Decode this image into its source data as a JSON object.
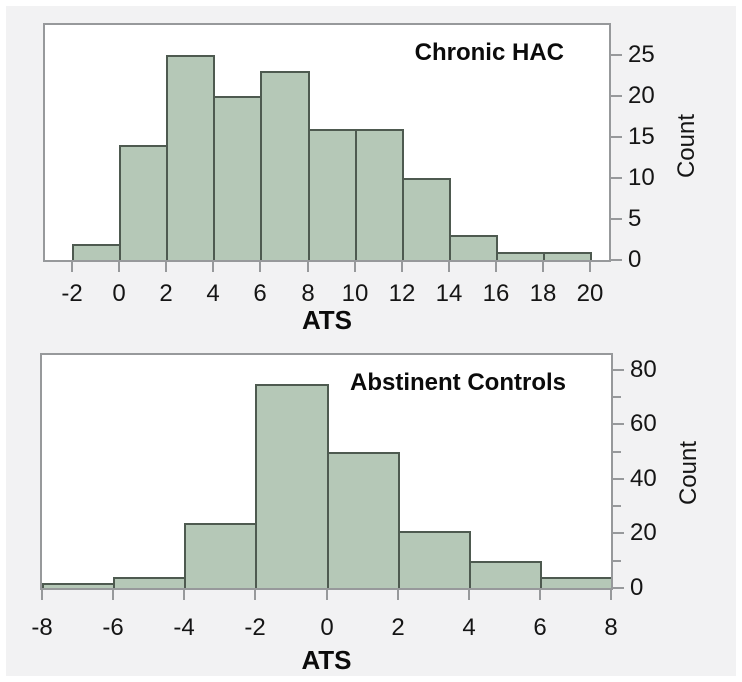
{
  "figure": {
    "background": "#f2f2f3",
    "plot_background": "#ffffff",
    "frame_color": "#97999b",
    "text_color": "#151515"
  },
  "chart_data": [
    {
      "type": "histogram",
      "title": "Chronic HAC",
      "xlabel": "ATS",
      "ylabel": "Count",
      "bin_start": -2,
      "bin_width": 2,
      "counts": [
        2,
        14,
        25,
        20,
        23,
        16,
        16,
        10,
        3,
        1,
        1
      ],
      "x_ticks": [
        -2,
        0,
        2,
        4,
        6,
        8,
        10,
        12,
        14,
        16,
        18,
        20
      ],
      "y_ticks": [
        0,
        5,
        10,
        15,
        20,
        25
      ],
      "y_minor_ticks": [],
      "xlim": [
        -3.15,
        20.8
      ],
      "ylim": [
        0,
        28.6
      ],
      "grid": false,
      "legend": "none",
      "y_axis_side": "right",
      "colors": {
        "fill": "#b5c8b7",
        "stroke": "#4e5a50"
      }
    },
    {
      "type": "histogram",
      "title": "Abstinent Controls",
      "xlabel": "ATS",
      "ylabel": "Count",
      "bin_start": -8,
      "bin_width": 2,
      "counts": [
        2,
        4,
        24,
        75,
        50,
        21,
        10,
        4
      ],
      "x_ticks": [
        -8,
        -6,
        -4,
        -2,
        0,
        2,
        4,
        6,
        8
      ],
      "y_ticks": [
        0,
        20,
        40,
        60,
        80
      ],
      "y_minor_ticks": [
        10,
        30,
        50,
        70
      ],
      "xlim": [
        -8,
        8
      ],
      "ylim": [
        0,
        85.5
      ],
      "grid": false,
      "legend": "none",
      "y_axis_side": "right",
      "colors": {
        "fill": "#b5c8b7",
        "stroke": "#4e5a50"
      }
    }
  ]
}
